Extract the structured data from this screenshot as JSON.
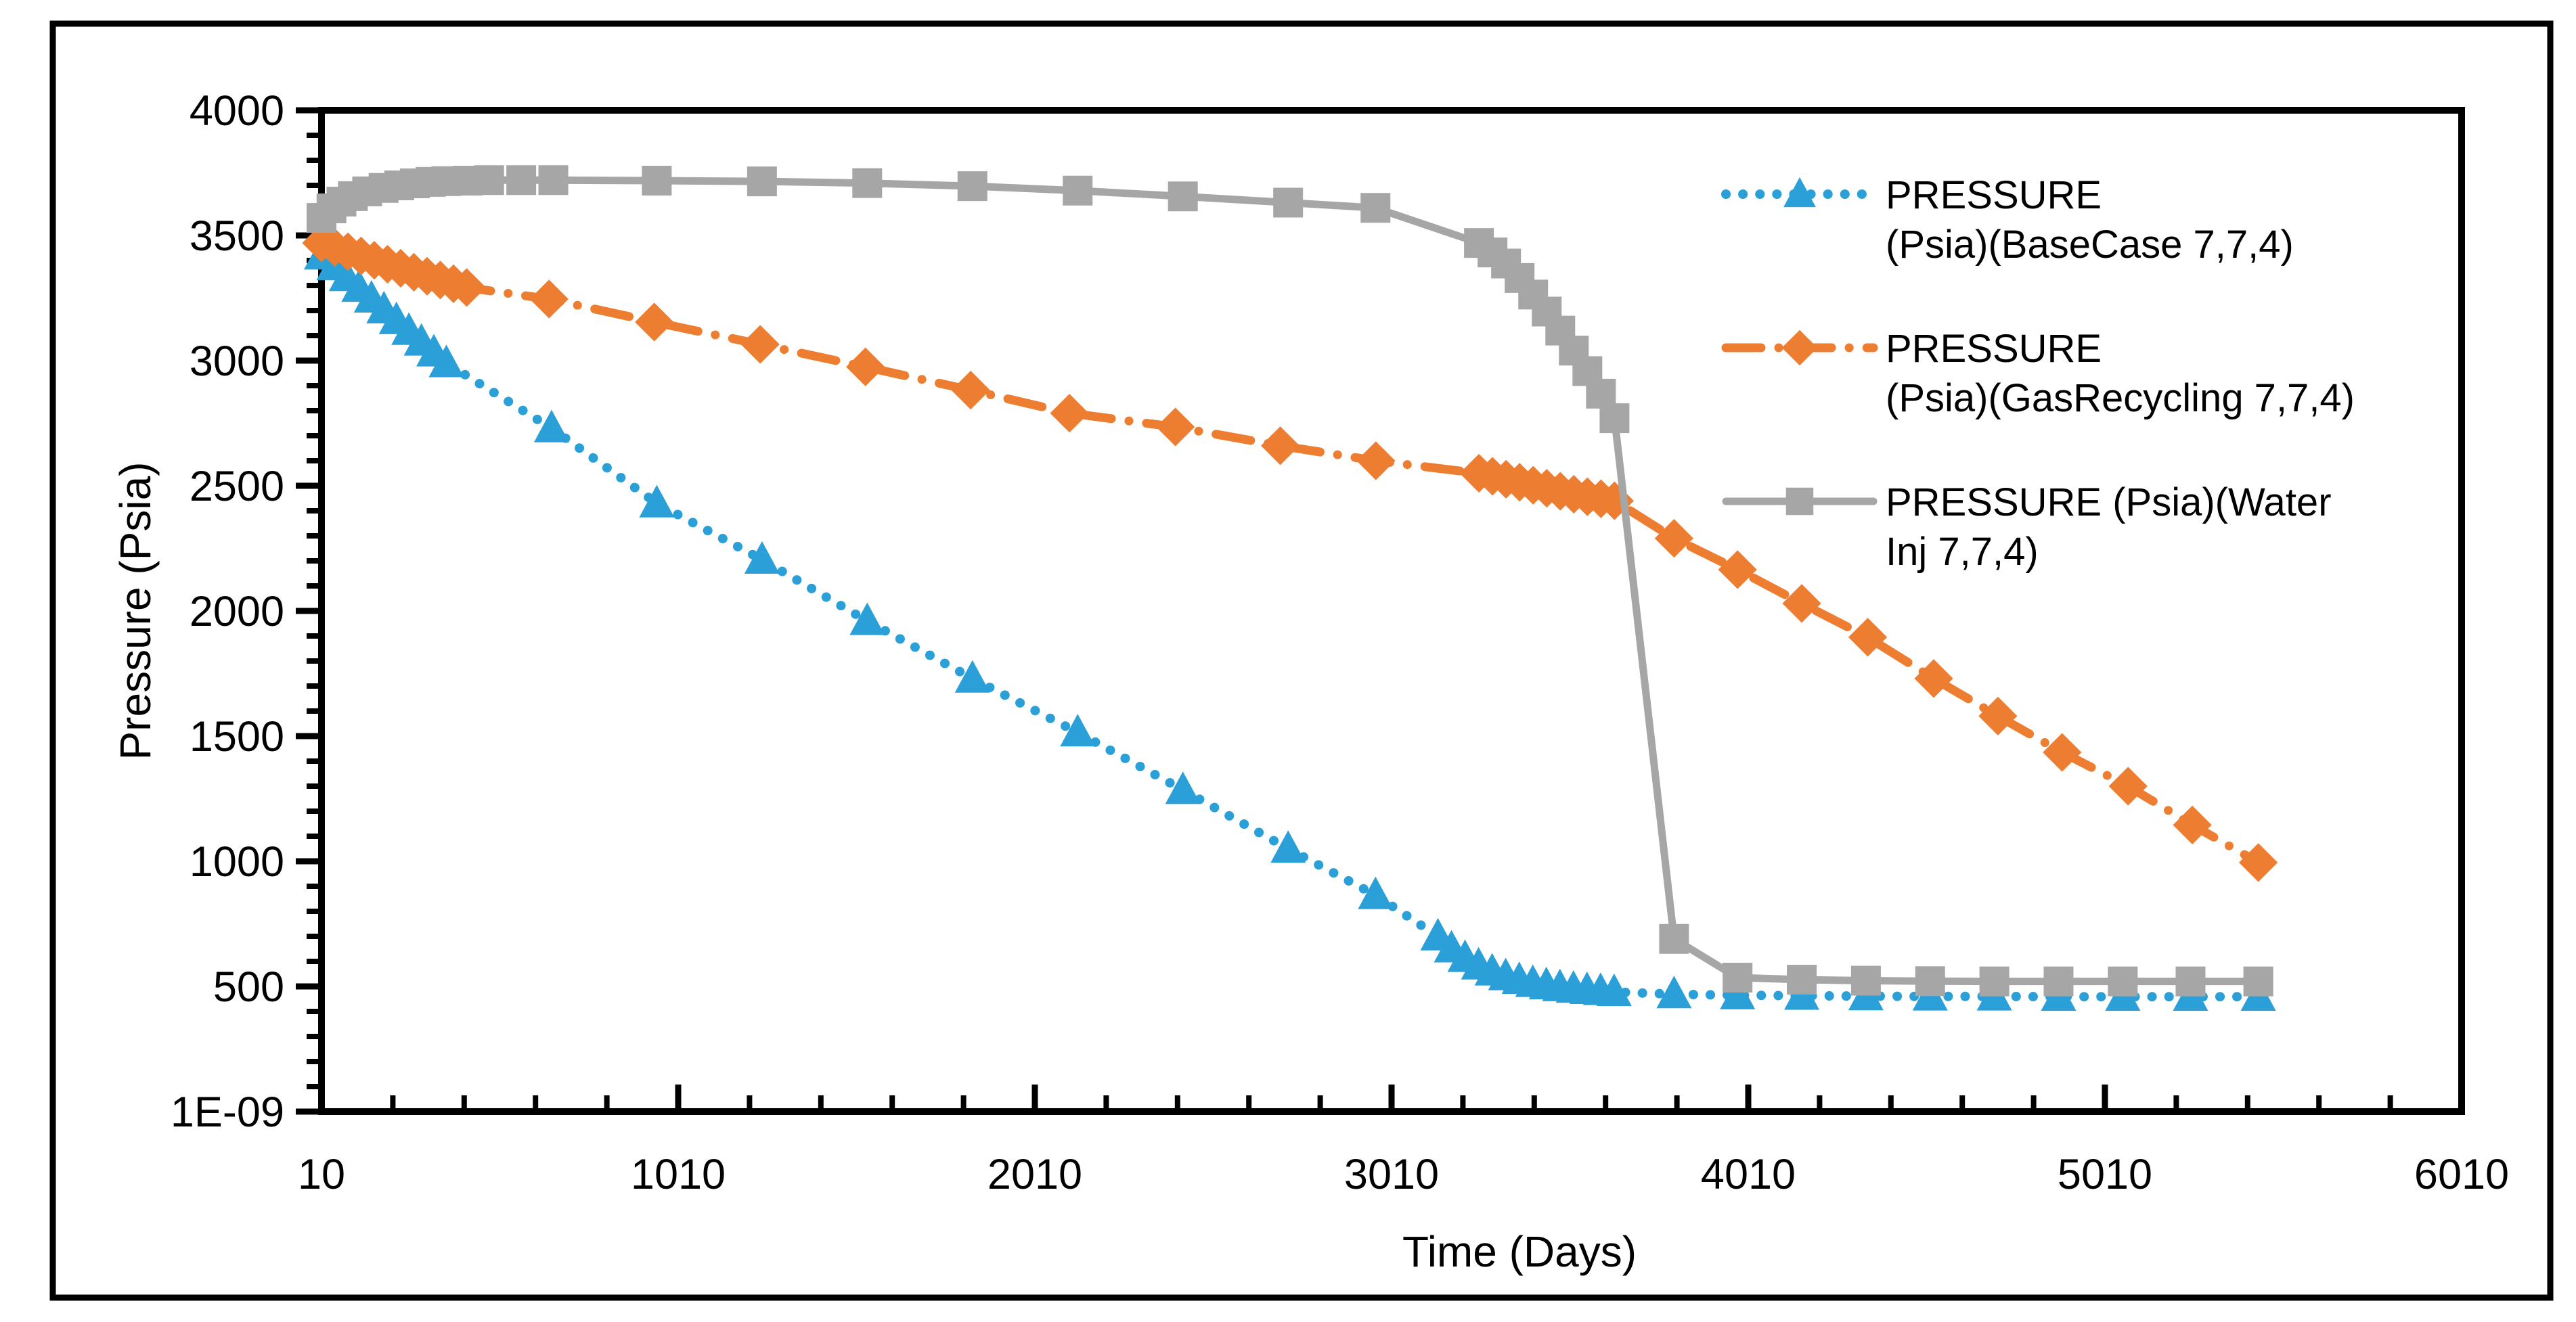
{
  "figure": {
    "background": "#ffffff",
    "border_color": "#000000"
  },
  "chart_data": {
    "type": "line",
    "title": "",
    "xlabel": "Time (Days)",
    "ylabel": "Pressure (Psia)",
    "xlim": [
      10,
      6010
    ],
    "ylim": [
      0,
      4000
    ],
    "grid": false,
    "legend_position": "right-top",
    "x_ticks": {
      "values": [
        10,
        1010,
        2010,
        3010,
        4010,
        5010,
        6010
      ],
      "labels": [
        "10",
        "1010",
        "2010",
        "3010",
        "4010",
        "5010",
        "6010"
      ],
      "minor_step": 200
    },
    "y_ticks": {
      "values": [
        0,
        500,
        1000,
        1500,
        2000,
        2500,
        3000,
        3500,
        4000
      ],
      "labels": [
        "1E-09",
        "500",
        "1000",
        "1500",
        "2000",
        "2500",
        "3000",
        "3500",
        "4000"
      ],
      "minor_step": 100
    },
    "series": [
      {
        "name": "PRESSURE (Psia)(BaseCase 7,7,4)",
        "legend_lines": [
          "PRESSURE",
          "(Psia)(BaseCase 7,7,4)"
        ],
        "color": "#2B9FD8",
        "marker": "triangle",
        "line_style": "dotted",
        "points": [
          [
            10,
            3420
          ],
          [
            45,
            3377
          ],
          [
            80,
            3334
          ],
          [
            115,
            3291
          ],
          [
            150,
            3248
          ],
          [
            185,
            3205
          ],
          [
            220,
            3162
          ],
          [
            255,
            3119
          ],
          [
            290,
            3076
          ],
          [
            325,
            3033
          ],
          [
            360,
            2990
          ],
          [
            655,
            2730
          ],
          [
            950,
            2430
          ],
          [
            1245,
            2205
          ],
          [
            1540,
            1960
          ],
          [
            1835,
            1730
          ],
          [
            2130,
            1515
          ],
          [
            2425,
            1285
          ],
          [
            2720,
            1050
          ],
          [
            2965,
            865
          ],
          [
            3140,
            700
          ],
          [
            3178,
            652
          ],
          [
            3216,
            614
          ],
          [
            3254,
            584
          ],
          [
            3292,
            560
          ],
          [
            3330,
            541
          ],
          [
            3368,
            526
          ],
          [
            3406,
            514
          ],
          [
            3444,
            505
          ],
          [
            3482,
            497
          ],
          [
            3520,
            491
          ],
          [
            3558,
            486
          ],
          [
            3596,
            482
          ],
          [
            3634,
            478
          ],
          [
            3802,
            469
          ],
          [
            3980,
            465
          ],
          [
            4160,
            463
          ],
          [
            4340,
            461
          ],
          [
            4520,
            460
          ],
          [
            4700,
            460
          ],
          [
            4880,
            459
          ],
          [
            5060,
            459
          ],
          [
            5250,
            459
          ],
          [
            5440,
            459
          ]
        ]
      },
      {
        "name": "PRESSURE (Psia)(GasRecycling 7,7,4)",
        "legend_lines": [
          "PRESSURE",
          "(Psia)(GasRecycling 7,7,4)"
        ],
        "color": "#ED7D31",
        "marker": "diamond",
        "line_style": "dashdot",
        "points": [
          [
            10,
            3470
          ],
          [
            47,
            3452
          ],
          [
            84,
            3435
          ],
          [
            121,
            3418
          ],
          [
            158,
            3401
          ],
          [
            195,
            3385
          ],
          [
            232,
            3369
          ],
          [
            269,
            3353
          ],
          [
            306,
            3337
          ],
          [
            343,
            3322
          ],
          [
            380,
            3307
          ],
          [
            417,
            3292
          ],
          [
            648,
            3246
          ],
          [
            943,
            3154
          ],
          [
            1240,
            3065
          ],
          [
            1535,
            2975
          ],
          [
            1830,
            2882
          ],
          [
            2107,
            2790
          ],
          [
            2404,
            2735
          ],
          [
            2698,
            2660
          ],
          [
            2966,
            2600
          ],
          [
            3255,
            2550
          ],
          [
            3293,
            2538
          ],
          [
            3331,
            2526
          ],
          [
            3369,
            2514
          ],
          [
            3407,
            2502
          ],
          [
            3445,
            2490
          ],
          [
            3483,
            2478
          ],
          [
            3521,
            2466
          ],
          [
            3559,
            2456
          ],
          [
            3597,
            2448
          ],
          [
            3635,
            2440
          ],
          [
            3802,
            2290
          ],
          [
            3980,
            2165
          ],
          [
            4160,
            2030
          ],
          [
            4345,
            1895
          ],
          [
            4530,
            1730
          ],
          [
            4710,
            1580
          ],
          [
            4890,
            1435
          ],
          [
            5075,
            1300
          ],
          [
            5255,
            1145
          ],
          [
            5440,
            995
          ]
        ]
      },
      {
        "name": "PRESSURE (Psia)(Water Inj 7,7,4)",
        "legend_lines": [
          "PRESSURE (Psia)(Water",
          "Inj 7,7,4)"
        ],
        "color": "#A6A6A6",
        "marker": "square",
        "line_style": "solid",
        "points": [
          [
            10,
            3570
          ],
          [
            38,
            3608
          ],
          [
            66,
            3635
          ],
          [
            98,
            3657
          ],
          [
            138,
            3676
          ],
          [
            184,
            3690
          ],
          [
            228,
            3700
          ],
          [
            272,
            3708
          ],
          [
            316,
            3714
          ],
          [
            360,
            3717
          ],
          [
            420,
            3719
          ],
          [
            480,
            3721
          ],
          [
            570,
            3721
          ],
          [
            660,
            3721
          ],
          [
            950,
            3719
          ],
          [
            1245,
            3716
          ],
          [
            1540,
            3709
          ],
          [
            1835,
            3697
          ],
          [
            2130,
            3679
          ],
          [
            2425,
            3656
          ],
          [
            2720,
            3631
          ],
          [
            2965,
            3610
          ],
          [
            3255,
            3470
          ],
          [
            3293,
            3432
          ],
          [
            3331,
            3388
          ],
          [
            3369,
            3330
          ],
          [
            3407,
            3264
          ],
          [
            3445,
            3196
          ],
          [
            3483,
            3120
          ],
          [
            3521,
            3040
          ],
          [
            3559,
            2958
          ],
          [
            3597,
            2868
          ],
          [
            3635,
            2770
          ],
          [
            3802,
            690
          ],
          [
            3980,
            535
          ],
          [
            4160,
            527
          ],
          [
            4340,
            523
          ],
          [
            4520,
            521
          ],
          [
            4700,
            520
          ],
          [
            4880,
            520
          ],
          [
            5060,
            520
          ],
          [
            5250,
            520
          ],
          [
            5440,
            520
          ]
        ]
      }
    ]
  }
}
